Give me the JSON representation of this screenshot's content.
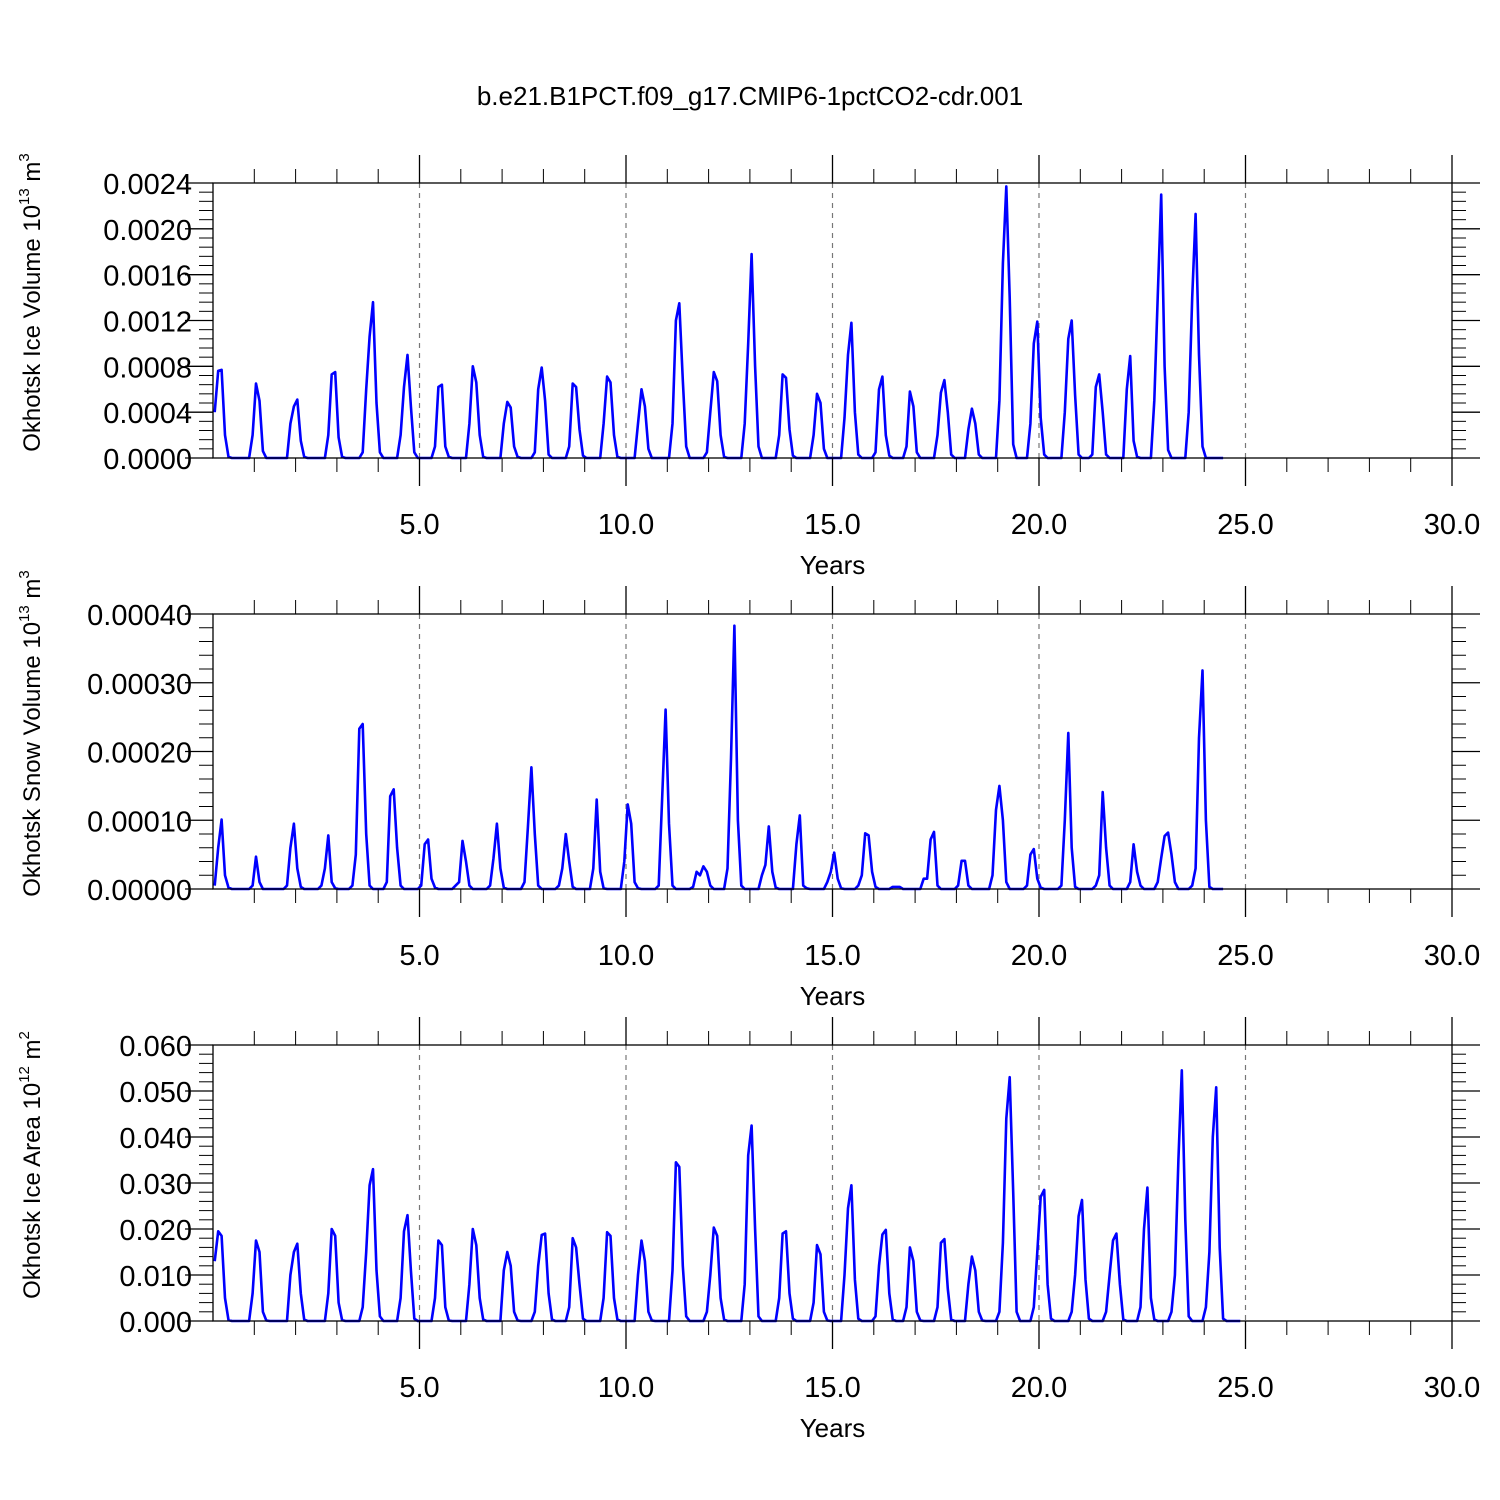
{
  "title": "b.e21.B1PCT.f09_g17.CMIP6-1pctCO2-cdr.001",
  "colors": {
    "series": "#0000ff",
    "frame": "#000000",
    "grid": "#777777"
  },
  "chart_data": [
    {
      "type": "line",
      "ylabel": {
        "text": "Okhotsk Ice Volume 10",
        "exponent": "13",
        "unit": "m",
        "unit_exponent": "3"
      },
      "xlabel": "Years",
      "xlim": [
        0.0,
        30.0
      ],
      "ylim": [
        0.0,
        0.0024
      ],
      "xticks": [
        5.0,
        10.0,
        15.0,
        20.0,
        25.0,
        30.0
      ],
      "xtick_labels": [
        "5.0",
        "10.0",
        "15.0",
        "20.0",
        "25.0",
        "30.0"
      ],
      "yticks": [
        0.0,
        0.0004,
        0.0008,
        0.0012,
        0.0016,
        0.002,
        0.0024
      ],
      "ytick_labels": [
        "0.0000",
        "0.0004",
        "0.0008",
        "0.0012",
        "0.0016",
        "0.0020",
        "0.0024"
      ],
      "grid": "vertical dashed at x ticks",
      "series": [
        {
          "color": "#0000ff",
          "x_start": 0.0417,
          "x_step": 0.0833333,
          "values": [
            0.0004,
            0.00076,
            0.00077,
            0.0002,
            1e-05,
            0,
            0,
            0,
            0,
            0,
            0,
            0.0002,
            0.00065,
            0.0005,
            6e-05,
            0,
            0,
            0,
            0,
            0,
            0,
            0,
            0.0003,
            0.00045,
            0.00051,
            0.00015,
            1e-05,
            0,
            0,
            0,
            0,
            0,
            0,
            0.0002,
            0.00073,
            0.00075,
            0.00018,
            1e-05,
            0,
            0,
            0,
            0,
            0,
            5e-05,
            0.0006,
            0.00106,
            0.00136,
            0.00048,
            5e-05,
            0,
            0,
            0,
            0,
            0,
            0.0002,
            0.00062,
            0.0009,
            0.00045,
            5e-05,
            0,
            0,
            0,
            0,
            0,
            0.0001,
            0.00062,
            0.00064,
            0.0001,
            1e-05,
            0,
            0,
            0,
            0,
            0,
            0.0003,
            0.0008,
            0.00066,
            0.0002,
            1e-05,
            0,
            0,
            0,
            0,
            0,
            0.0003,
            0.00049,
            0.00044,
            0.0001,
            1e-05,
            0,
            0,
            0,
            0,
            5e-05,
            0.0006,
            0.00079,
            0.0005,
            3e-05,
            0,
            0,
            0,
            0,
            0,
            0.0001,
            0.00065,
            0.00062,
            0.00025,
            2e-05,
            0,
            0,
            0,
            0,
            0,
            0.0003,
            0.00071,
            0.00066,
            0.0002,
            1e-05,
            0,
            0,
            0,
            0,
            0,
            0.0003,
            0.0006,
            0.00045,
            8e-05,
            0,
            0,
            0,
            0,
            0,
            0,
            0.0003,
            0.0012,
            0.00135,
            0.00068,
            0.0001,
            0,
            0,
            0,
            0,
            0,
            5e-05,
            0.0004,
            0.00075,
            0.00067,
            0.0002,
            1e-05,
            0,
            0,
            0,
            0,
            0,
            0.0003,
            0.001,
            0.00178,
            0.0008,
            0.0001,
            0,
            0,
            0,
            0,
            0,
            0.0002,
            0.00073,
            0.0007,
            0.00025,
            2e-05,
            0,
            0,
            0,
            0,
            0,
            0.0002,
            0.00056,
            0.00048,
            8e-05,
            0,
            0,
            0,
            0,
            0,
            0.00035,
            0.0009,
            0.00118,
            0.0004,
            3e-05,
            0,
            0,
            0,
            0,
            5e-05,
            0.0006,
            0.00071,
            0.0002,
            2e-05,
            0,
            0,
            0,
            0,
            0.0001,
            0.00058,
            0.00045,
            5e-05,
            0,
            0,
            0,
            0,
            0,
            0.0002,
            0.00057,
            0.00068,
            0.0004,
            3e-05,
            0,
            0,
            0,
            0,
            0.00025,
            0.00043,
            0.0003,
            3e-05,
            0,
            0,
            0,
            0,
            0,
            0.0005,
            0.0017,
            0.00237,
            0.0014,
            0.00012,
            0,
            0,
            0,
            0,
            0.0003,
            0.001,
            0.00119,
            0.00035,
            3e-05,
            0,
            0,
            0,
            0,
            0,
            0.0004,
            0.00104,
            0.0012,
            0.00055,
            3e-05,
            0,
            0,
            0,
            3e-05,
            0.00062,
            0.00073,
            0.0004,
            3e-05,
            0,
            0,
            0,
            0,
            0,
            0.0006,
            0.00089,
            0.00015,
            1e-05,
            0,
            0,
            0,
            0,
            0.0005,
            0.0014,
            0.0023,
            0.0008,
            7e-05,
            0,
            0,
            0,
            0,
            0,
            0.0004,
            0.0014,
            0.00213,
            0.0009,
            0.0001,
            0,
            0,
            0,
            0,
            0,
            0
          ]
        }
      ]
    },
    {
      "type": "line",
      "ylabel": {
        "text": "Okhotsk Snow Volume 10",
        "exponent": "13",
        "unit": "m",
        "unit_exponent": "3"
      },
      "xlabel": "Years",
      "xlim": [
        0.0,
        30.0
      ],
      "ylim": [
        0.0,
        0.0004
      ],
      "xticks": [
        5.0,
        10.0,
        15.0,
        20.0,
        25.0,
        30.0
      ],
      "xtick_labels": [
        "5.0",
        "10.0",
        "15.0",
        "20.0",
        "25.0",
        "30.0"
      ],
      "yticks": [
        0.0,
        0.0001,
        0.0002,
        0.0003,
        0.0004
      ],
      "ytick_labels": [
        "0.00000",
        "0.00010",
        "0.00020",
        "0.00030",
        "0.00040"
      ],
      "grid": "vertical dashed at x ticks",
      "series": [
        {
          "color": "#0000ff",
          "x_start": 0.0417,
          "x_step": 0.0833333,
          "values": [
            5e-06,
            6e-05,
            0.000101,
            2e-05,
            2e-06,
            0,
            0,
            0,
            0,
            0,
            0,
            5e-06,
            4.7e-05,
            1e-05,
            0,
            0,
            0,
            0,
            0,
            0,
            0,
            5e-06,
            6e-05,
            9.5e-05,
            3e-05,
            3e-06,
            0,
            0,
            0,
            0,
            0,
            5e-06,
            3e-05,
            7.8e-05,
            1e-05,
            1e-06,
            0,
            0,
            0,
            0,
            5e-06,
            5e-05,
            0.000233,
            0.00024,
            8e-05,
            5e-06,
            0,
            0,
            0,
            0,
            1e-05,
            0.000135,
            0.000145,
            6e-05,
            5e-06,
            0,
            0,
            0,
            0,
            0,
            5e-06,
            6.5e-05,
            7.2e-05,
            1.5e-05,
            2e-06,
            0,
            0,
            0,
            0,
            0,
            5e-06,
            1e-05,
            7e-05,
            4e-05,
            5e-06,
            0,
            0,
            0,
            0,
            0,
            5e-06,
            4.5e-05,
            9.5e-05,
            3e-05,
            2e-06,
            0,
            0,
            0,
            0,
            0,
            1e-05,
            9e-05,
            0.000177,
            8e-05,
            5e-06,
            0,
            0,
            0,
            0,
            0,
            5e-06,
            3e-05,
            8e-05,
            4e-05,
            3e-06,
            0,
            0,
            0,
            0,
            0,
            3e-05,
            0.00013,
            2.5e-05,
            1e-06,
            0,
            0,
            0,
            0,
            0,
            4e-05,
            0.000123,
            9.5e-05,
            1e-05,
            1e-06,
            0,
            0,
            0,
            0,
            0,
            5e-06,
            0.00013,
            0.000261,
            9.5e-05,
            5e-06,
            0,
            0,
            0,
            0,
            0,
            3e-06,
            2.5e-05,
            2e-05,
            3.3e-05,
            2.5e-05,
            5e-06,
            0,
            0,
            0,
            0,
            3e-05,
            0.00019,
            0.000383,
            0.0001,
            5e-06,
            0,
            0,
            0,
            0,
            0,
            2e-05,
            3.5e-05,
            9.1e-05,
            2.5e-05,
            2e-06,
            0,
            0,
            0,
            0,
            0,
            6.5e-05,
            0.000107,
            5e-06,
            1e-06,
            0,
            0,
            0,
            0,
            0,
            1e-05,
            2.5e-05,
            5.3e-05,
            1.5e-05,
            1e-06,
            0,
            0,
            0,
            0,
            5e-06,
            2e-05,
            8.1e-05,
            7.8e-05,
            2.5e-05,
            3e-06,
            0,
            0,
            0,
            0,
            3e-06,
            3e-06,
            3e-06,
            0,
            0,
            0,
            0,
            0,
            0,
            1.5e-05,
            1.5e-05,
            7.2e-05,
            8.3e-05,
            5e-06,
            0,
            0,
            0,
            0,
            0,
            5e-06,
            4.1e-05,
            4.1e-05,
            5e-06,
            0,
            0,
            0,
            0,
            0,
            0,
            2e-05,
            0.000115,
            0.00015,
            0.0001,
            1e-05,
            0,
            0,
            0,
            0,
            0,
            5e-06,
            5e-05,
            5.8e-05,
            1.5e-05,
            2e-06,
            0,
            0,
            0,
            0,
            0,
            5e-06,
            0.0001,
            0.000227,
            6e-05,
            3e-06,
            0,
            0,
            0,
            0,
            0,
            5e-06,
            2e-05,
            0.000141,
            6e-05,
            5e-06,
            0,
            0,
            0,
            0,
            0,
            1e-05,
            6.5e-05,
            2.5e-05,
            5e-06,
            0,
            0,
            0,
            0,
            1e-05,
            4.5e-05,
            7.7e-05,
            8.2e-05,
            5e-05,
            1e-05,
            0,
            0,
            0,
            0,
            5e-06,
            3e-05,
            0.00022,
            0.000318,
            0.0001,
            3e-06,
            0,
            0,
            0,
            0
          ]
        }
      ]
    },
    {
      "type": "line",
      "ylabel": {
        "text": "Okhotsk Ice Area 10",
        "exponent": "12",
        "unit": "m",
        "unit_exponent": "2"
      },
      "xlabel": "Years",
      "xlim": [
        0.0,
        30.0
      ],
      "ylim": [
        0.0,
        0.06
      ],
      "xticks": [
        5.0,
        10.0,
        15.0,
        20.0,
        25.0,
        30.0
      ],
      "xtick_labels": [
        "5.0",
        "10.0",
        "15.0",
        "20.0",
        "25.0",
        "30.0"
      ],
      "yticks": [
        0.0,
        0.01,
        0.02,
        0.03,
        0.04,
        0.05,
        0.06
      ],
      "ytick_labels": [
        "0.000",
        "0.010",
        "0.020",
        "0.030",
        "0.040",
        "0.050",
        "0.060"
      ],
      "grid": "vertical dashed at x ticks",
      "series": [
        {
          "color": "#0000ff",
          "x_start": 0.0417,
          "x_step": 0.0833333,
          "values": [
            0.013,
            0.0195,
            0.0185,
            0.005,
            0.0002,
            0,
            0,
            0,
            0,
            0,
            0,
            0.006,
            0.0175,
            0.015,
            0.002,
            0.0001,
            0,
            0,
            0,
            0,
            0,
            0,
            0.01,
            0.015,
            0.0168,
            0.006,
            0.0003,
            0,
            0,
            0,
            0,
            0,
            0,
            0.006,
            0.02,
            0.0185,
            0.004,
            0.0002,
            0,
            0,
            0,
            0,
            0,
            0.003,
            0.015,
            0.0295,
            0.033,
            0.011,
            0.001,
            0,
            0,
            0,
            0,
            0,
            0.005,
            0.0195,
            0.023,
            0.011,
            0.0005,
            0,
            0,
            0,
            0,
            0,
            0.005,
            0.0175,
            0.0165,
            0.003,
            0.0001,
            0,
            0,
            0,
            0,
            0,
            0.008,
            0.02,
            0.0165,
            0.005,
            0.0003,
            0,
            0,
            0,
            0,
            0,
            0.011,
            0.015,
            0.012,
            0.002,
            0.0001,
            0,
            0,
            0,
            0,
            0.002,
            0.012,
            0.0187,
            0.019,
            0.006,
            0.0003,
            0,
            0,
            0,
            0,
            0.003,
            0.018,
            0.016,
            0.008,
            0.0005,
            0,
            0,
            0,
            0,
            0,
            0.005,
            0.0193,
            0.0185,
            0.005,
            0.0003,
            0,
            0,
            0,
            0,
            0,
            0.01,
            0.0175,
            0.013,
            0.002,
            0.0001,
            0,
            0,
            0,
            0,
            0,
            0.011,
            0.0345,
            0.0335,
            0.012,
            0.001,
            0,
            0,
            0,
            0,
            0,
            0.002,
            0.01,
            0.0203,
            0.0185,
            0.005,
            0.0003,
            0,
            0,
            0,
            0,
            0,
            0.008,
            0.036,
            0.0425,
            0.02,
            0.001,
            0,
            0,
            0,
            0,
            0,
            0.005,
            0.019,
            0.0195,
            0.006,
            0.0005,
            0,
            0,
            0,
            0,
            0,
            0.004,
            0.0165,
            0.0145,
            0.002,
            0.0001,
            0,
            0,
            0,
            0,
            0.01,
            0.0245,
            0.0295,
            0.009,
            0.0005,
            0,
            0,
            0,
            0,
            0.001,
            0.012,
            0.0188,
            0.0198,
            0.006,
            0.0003,
            0,
            0,
            0,
            0.003,
            0.016,
            0.013,
            0.002,
            0.0001,
            0,
            0,
            0,
            0,
            0.003,
            0.017,
            0.0178,
            0.007,
            0.0003,
            0,
            0,
            0,
            0,
            0.008,
            0.014,
            0.011,
            0.002,
            0.0001,
            0,
            0,
            0,
            0,
            0.002,
            0.017,
            0.044,
            0.053,
            0.028,
            0.002,
            0,
            0,
            0,
            0,
            0.003,
            0.015,
            0.027,
            0.0285,
            0.008,
            0.0005,
            0,
            0,
            0,
            0,
            0,
            0.002,
            0.01,
            0.0228,
            0.0263,
            0.009,
            0.0005,
            0,
            0,
            0,
            0,
            0.002,
            0.01,
            0.0175,
            0.019,
            0.008,
            0.0003,
            0,
            0,
            0,
            0,
            0.003,
            0.02,
            0.029,
            0.005,
            0.0003,
            0,
            0,
            0,
            0,
            0.002,
            0.01,
            0.035,
            0.0545,
            0.022,
            0.001,
            0,
            0,
            0,
            0,
            0.003,
            0.015,
            0.04,
            0.0508,
            0.016,
            0.0005,
            0,
            0,
            0,
            0,
            0
          ]
        }
      ]
    }
  ]
}
